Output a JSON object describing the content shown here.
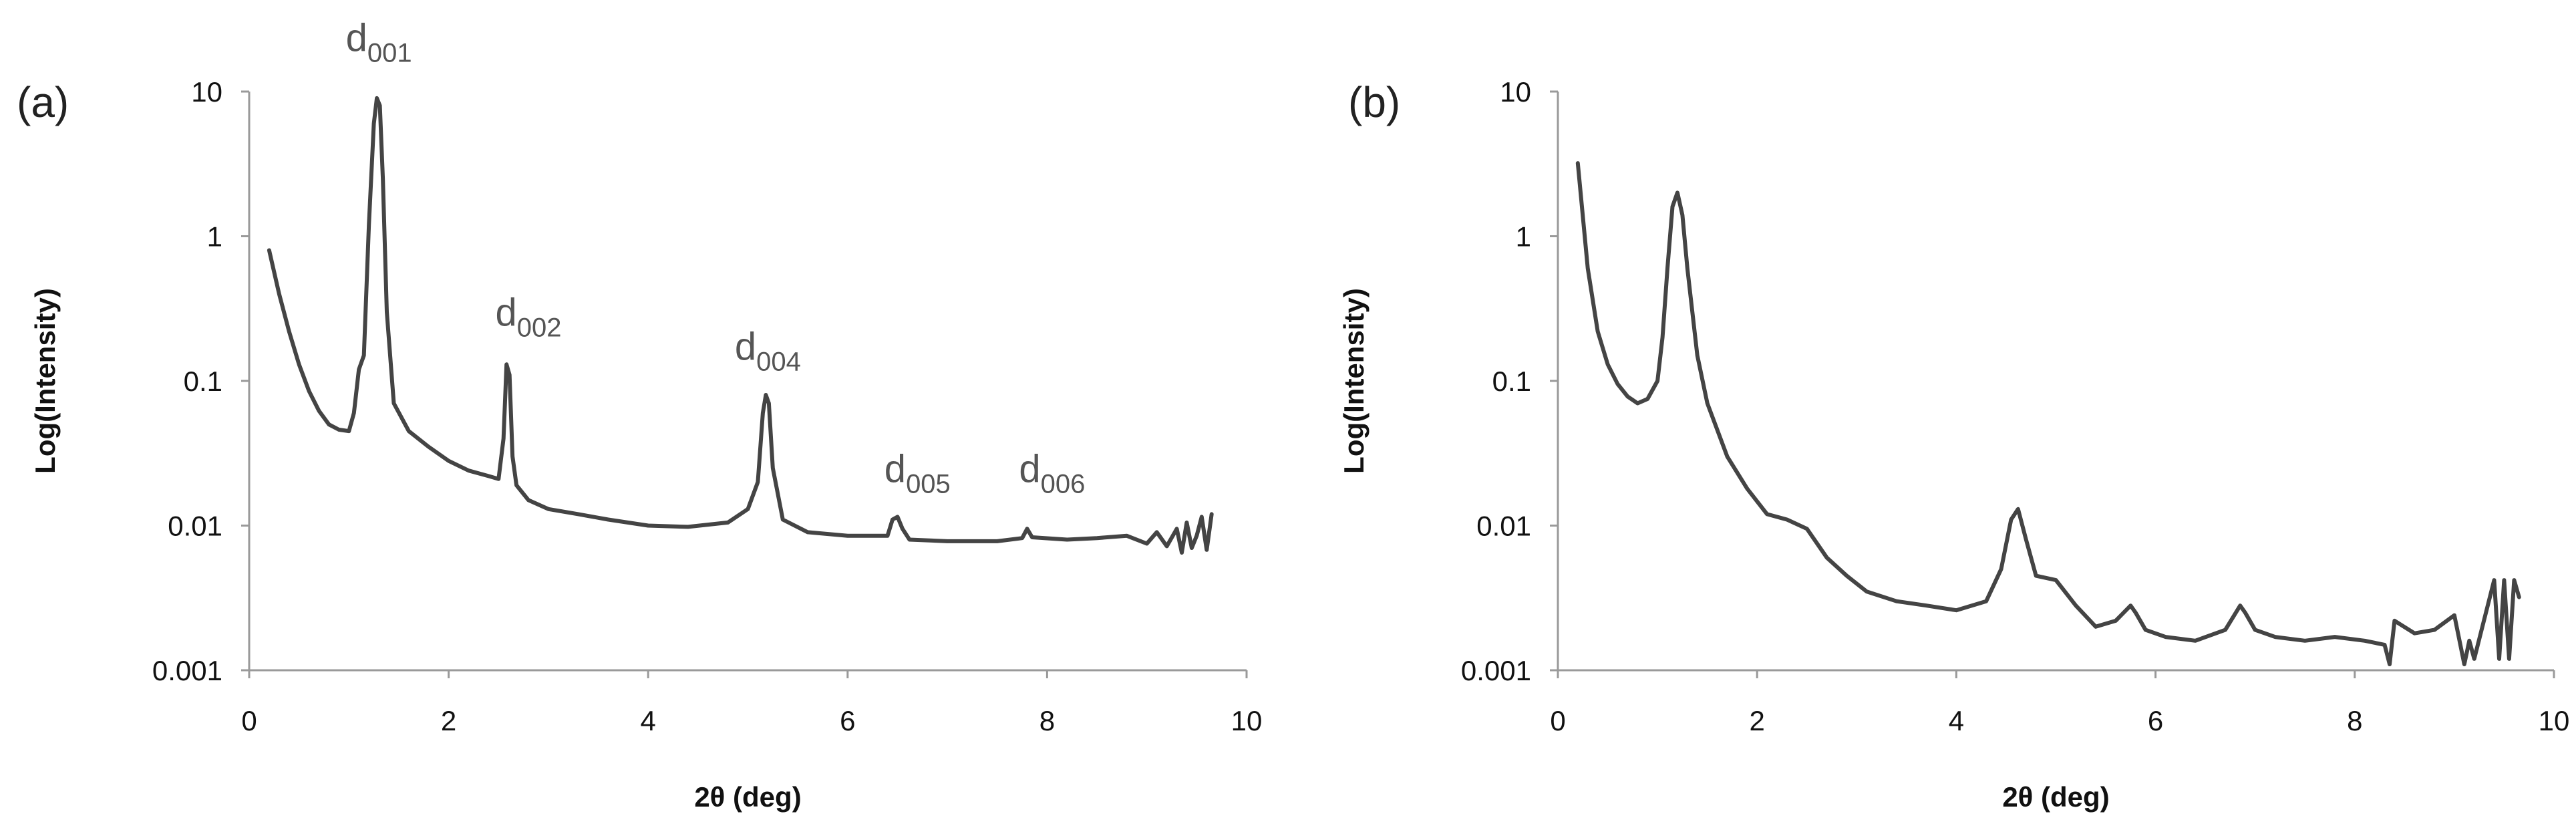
{
  "chart_data": [
    {
      "type": "line",
      "panel_label": "(a)",
      "xlabel": "2θ (deg)",
      "ylabel": "Log(Intensity)",
      "xlim": [
        0,
        10
      ],
      "ylim": [
        0.001,
        10
      ],
      "yscale": "log",
      "grid": false,
      "legend": "none",
      "x_ticks": [
        "0",
        "2",
        "4",
        "6",
        "8",
        "10"
      ],
      "y_ticks": [
        "0.001",
        "0.01",
        "0.1",
        "1",
        "10"
      ],
      "line_color": "#444444",
      "annotations": [
        {
          "base": "d",
          "sub": "001",
          "x": 1.3,
          "y": 19
        },
        {
          "base": "d",
          "sub": "002",
          "x": 2.8,
          "y": 0.24
        },
        {
          "base": "d",
          "sub": "004",
          "x": 5.2,
          "y": 0.14
        },
        {
          "base": "d",
          "sub": "005",
          "x": 6.7,
          "y": 0.02
        },
        {
          "base": "d",
          "sub": "006",
          "x": 8.05,
          "y": 0.02
        }
      ],
      "series": [
        {
          "x": [
            0.2,
            0.3,
            0.4,
            0.5,
            0.6,
            0.7,
            0.8,
            0.9,
            1.0,
            1.05,
            1.1,
            1.15,
            1.2,
            1.25,
            1.28,
            1.31,
            1.34,
            1.38,
            1.45,
            1.6,
            1.8,
            2.0,
            2.2,
            2.4,
            2.5,
            2.55,
            2.58,
            2.61,
            2.64,
            2.68,
            2.8,
            3.0,
            3.3,
            3.6,
            4.0,
            4.4,
            4.8,
            5.0,
            5.1,
            5.15,
            5.18,
            5.21,
            5.25,
            5.35,
            5.6,
            6.0,
            6.4,
            6.45,
            6.5,
            6.55,
            6.62,
            7.0,
            7.5,
            7.75,
            7.8,
            7.85,
            8.2,
            8.5,
            8.8,
            9.0,
            9.1,
            9.2,
            9.3,
            9.35,
            9.4,
            9.45,
            9.5,
            9.55,
            9.6,
            9.65
          ],
          "y": [
            0.8,
            0.4,
            0.22,
            0.13,
            0.085,
            0.062,
            0.05,
            0.046,
            0.045,
            0.06,
            0.12,
            0.15,
            1.2,
            6.0,
            9.0,
            8.0,
            2.5,
            0.3,
            0.07,
            0.045,
            0.035,
            0.028,
            0.024,
            0.022,
            0.021,
            0.04,
            0.13,
            0.11,
            0.03,
            0.019,
            0.015,
            0.013,
            0.012,
            0.011,
            0.01,
            0.0098,
            0.0105,
            0.013,
            0.02,
            0.06,
            0.08,
            0.07,
            0.025,
            0.011,
            0.009,
            0.0085,
            0.0085,
            0.011,
            0.0115,
            0.0095,
            0.008,
            0.0078,
            0.0078,
            0.0082,
            0.0095,
            0.0083,
            0.008,
            0.0082,
            0.0085,
            0.0075,
            0.009,
            0.0072,
            0.0095,
            0.0065,
            0.0105,
            0.007,
            0.0085,
            0.0115,
            0.0068,
            0.012
          ]
        }
      ]
    },
    {
      "type": "line",
      "panel_label": "(b)",
      "xlabel": "2θ (deg)",
      "ylabel": "Log(Intensity)",
      "xlim": [
        0,
        10
      ],
      "ylim": [
        0.001,
        10
      ],
      "yscale": "log",
      "grid": false,
      "legend": "none",
      "x_ticks": [
        "0",
        "2",
        "4",
        "6",
        "8",
        "10"
      ],
      "y_ticks": [
        "0.001",
        "0.01",
        "0.1",
        "1",
        "10"
      ],
      "line_color": "#444444",
      "annotations": [],
      "series": [
        {
          "x": [
            0.2,
            0.3,
            0.4,
            0.5,
            0.6,
            0.7,
            0.8,
            0.9,
            1.0,
            1.05,
            1.1,
            1.15,
            1.2,
            1.25,
            1.3,
            1.4,
            1.5,
            1.7,
            1.9,
            2.1,
            2.3,
            2.5,
            2.7,
            2.9,
            3.1,
            3.4,
            3.7,
            4.0,
            4.3,
            4.45,
            4.55,
            4.62,
            4.7,
            4.8,
            5.0,
            5.2,
            5.4,
            5.6,
            5.75,
            5.8,
            5.9,
            6.1,
            6.4,
            6.7,
            6.85,
            6.9,
            7.0,
            7.2,
            7.5,
            7.8,
            8.1,
            8.3,
            8.35,
            8.4,
            8.6,
            8.8,
            9.0,
            9.1,
            9.15,
            9.2,
            9.4,
            9.45,
            9.5,
            9.55,
            9.6,
            9.65
          ],
          "y": [
            3.2,
            0.6,
            0.22,
            0.13,
            0.095,
            0.078,
            0.07,
            0.075,
            0.1,
            0.2,
            0.6,
            1.6,
            2.0,
            1.4,
            0.6,
            0.15,
            0.07,
            0.03,
            0.018,
            0.012,
            0.011,
            0.0095,
            0.006,
            0.0045,
            0.0035,
            0.003,
            0.0028,
            0.0026,
            0.003,
            0.005,
            0.011,
            0.013,
            0.008,
            0.0045,
            0.0042,
            0.0028,
            0.002,
            0.0022,
            0.0028,
            0.0025,
            0.0019,
            0.0017,
            0.0016,
            0.0019,
            0.0028,
            0.0025,
            0.0019,
            0.0017,
            0.0016,
            0.0017,
            0.0016,
            0.0015,
            0.0011,
            0.0022,
            0.0018,
            0.0019,
            0.0024,
            0.0011,
            0.0016,
            0.0012,
            0.0042,
            0.0012,
            0.0042,
            0.0012,
            0.0042,
            0.0032
          ]
        }
      ]
    }
  ]
}
